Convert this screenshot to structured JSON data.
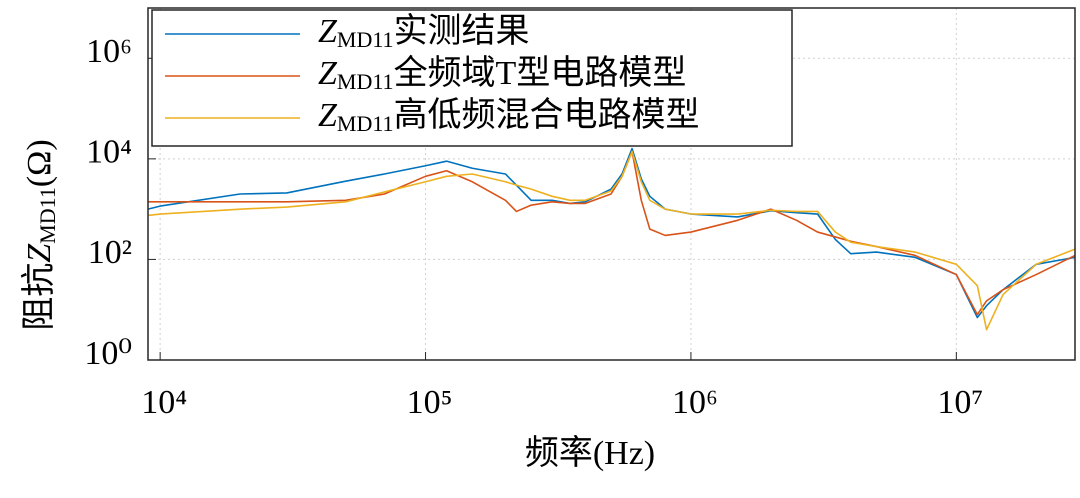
{
  "chart_data": {
    "type": "line",
    "x_label": "频率(Hz)",
    "y_label": {
      "prefix": "阻抗",
      "symbol": "Z",
      "subscript": "MD11",
      "suffix": "(Ω)"
    },
    "legend_symbol": "Z",
    "legend_subscript": "MD11",
    "log_x": true,
    "log_y": true,
    "grid": true,
    "legend_position": "upper-left",
    "xlim": [
      9000,
      28000000
    ],
    "ylim": [
      1,
      10000000
    ],
    "xticks": [
      {
        "value": 10000,
        "label": "10⁴"
      },
      {
        "value": 100000,
        "label": "10⁵"
      },
      {
        "value": 1000000,
        "label": "10⁶"
      },
      {
        "value": 10000000,
        "label": "10⁷"
      }
    ],
    "yticks": [
      {
        "value": 1,
        "label": "10⁰"
      },
      {
        "value": 100,
        "label": "10²"
      },
      {
        "value": 10000,
        "label": "10⁴"
      },
      {
        "value": 1000000,
        "label": "10⁶"
      }
    ],
    "x": [
      9000,
      10000,
      20000,
      30000,
      50000,
      70000,
      100000,
      120000,
      150000,
      200000,
      220000,
      250000,
      300000,
      350000,
      400000,
      500000,
      550000,
      600000,
      650000,
      700000,
      800000,
      1000000,
      1500000,
      2000000,
      2500000,
      3000000,
      3500000,
      4000000,
      5000000,
      7000000,
      10000000,
      12000000,
      13000000,
      15000000,
      20000000,
      28000000
    ],
    "series": [
      {
        "name": "实测结果",
        "color": "#0072bd",
        "values": [
          1000,
          1150,
          2000,
          2100,
          3600,
          5000,
          7300,
          9000,
          6500,
          5000,
          3000,
          1500,
          1500,
          1300,
          1400,
          2500,
          5000,
          16000,
          4000,
          1800,
          1000,
          800,
          700,
          930,
          850,
          800,
          250,
          130,
          140,
          110,
          50,
          7,
          12,
          25,
          80,
          110
        ]
      },
      {
        "name": "全频域T型电路模型",
        "color": "#d95319",
        "values": [
          1400,
          1400,
          1400,
          1400,
          1500,
          2000,
          4500,
          5800,
          3500,
          1500,
          900,
          1200,
          1400,
          1300,
          1300,
          2000,
          4500,
          14000,
          1500,
          400,
          300,
          350,
          600,
          1000,
          600,
          350,
          280,
          230,
          180,
          120,
          50,
          8,
          15,
          25,
          50,
          120
        ]
      },
      {
        "name": "高低频混合电路模型",
        "color": "#edb120",
        "values": [
          750,
          800,
          1000,
          1100,
          1400,
          2200,
          3500,
          4500,
          5000,
          3500,
          3000,
          2500,
          1800,
          1500,
          1500,
          2300,
          4500,
          14000,
          3500,
          1500,
          1000,
          800,
          800,
          950,
          900,
          900,
          350,
          220,
          180,
          140,
          80,
          30,
          4,
          20,
          80,
          160
        ]
      }
    ]
  }
}
